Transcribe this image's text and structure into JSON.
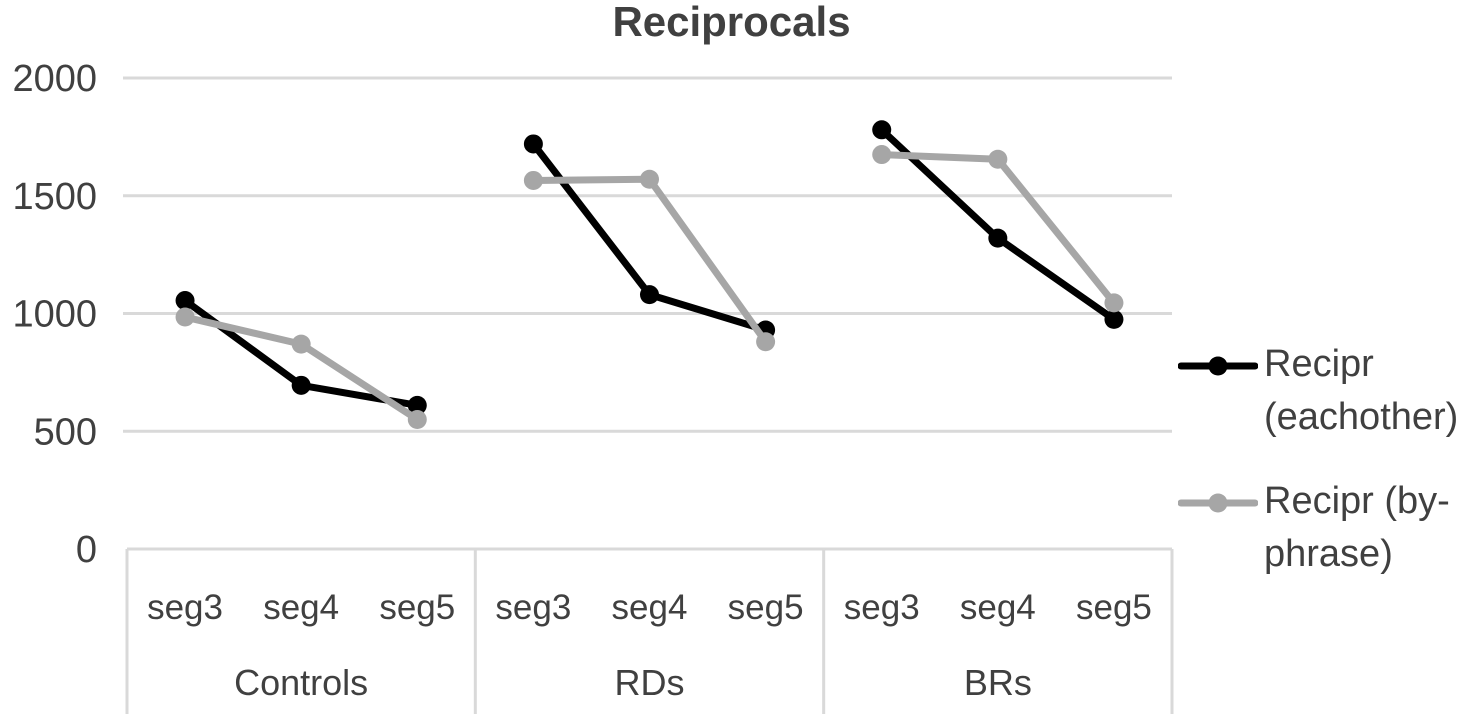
{
  "title": "Reciprocals",
  "colors": {
    "background": "#ffffff",
    "text": "#404040",
    "gridline": "#d9d9d9",
    "series_black": "#000000",
    "series_gray": "#a6a6a6"
  },
  "chart_data": {
    "type": "line",
    "title": "Reciprocals",
    "categories": [
      "seg3",
      "seg4",
      "seg5",
      "seg3",
      "seg4",
      "seg5",
      "seg3",
      "seg4",
      "seg5"
    ],
    "group_labels": [
      "Controls",
      "RDs",
      "BRs"
    ],
    "group_size": 3,
    "series": [
      {
        "name": "Recipr (eachother)",
        "color": "#000000",
        "values": [
          1055,
          695,
          610,
          1720,
          1080,
          930,
          1780,
          1320,
          975
        ]
      },
      {
        "name": "Recipr (by-phrase)",
        "color": "#a6a6a6",
        "values": [
          985,
          870,
          550,
          1565,
          1570,
          880,
          1675,
          1655,
          1045
        ]
      }
    ],
    "xlabel": "",
    "ylabel": "",
    "ylim": [
      0,
      2000
    ],
    "yticks": [
      0,
      500,
      1000,
      1500,
      2000
    ],
    "ytick_labels": [
      "0",
      "500",
      "1000",
      "1500",
      "2000"
    ],
    "grid": true,
    "legend_position": "right",
    "marker": "circle"
  }
}
